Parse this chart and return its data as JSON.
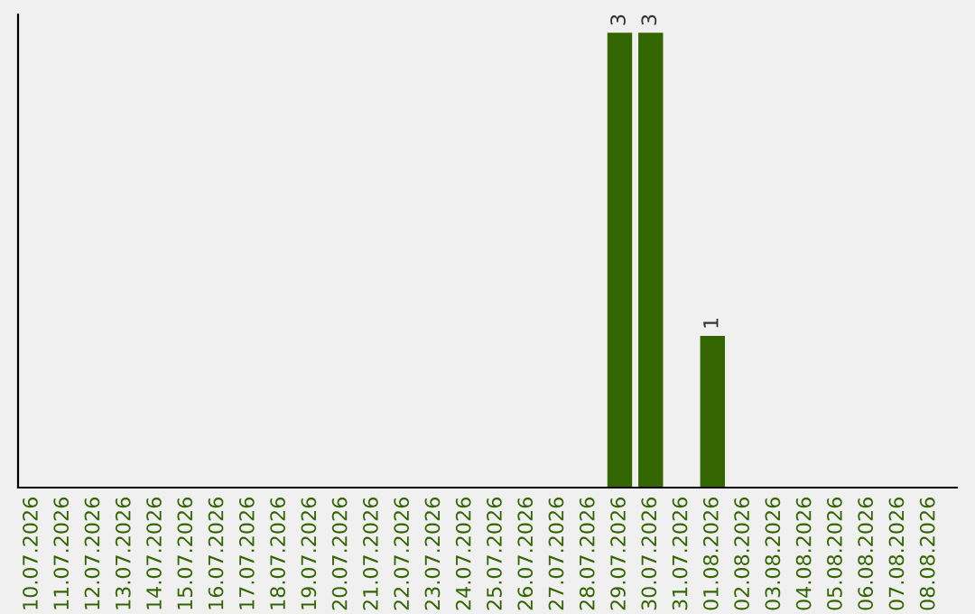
{
  "chart_data": {
    "type": "bar",
    "categories": [
      "10.07.2026",
      "11.07.2026",
      "12.07.2026",
      "13.07.2026",
      "14.07.2026",
      "15.07.2026",
      "16.07.2026",
      "17.07.2026",
      "18.07.2026",
      "19.07.2026",
      "20.07.2026",
      "21.07.2026",
      "22.07.2026",
      "23.07.2026",
      "24.07.2026",
      "25.07.2026",
      "26.07.2026",
      "27.07.2026",
      "28.07.2026",
      "29.07.2026",
      "30.07.2026",
      "31.07.2026",
      "01.08.2026",
      "02.08.2026",
      "03.08.2026",
      "04.08.2026",
      "05.08.2026",
      "06.08.2026",
      "07.08.2026",
      "08.08.2026"
    ],
    "values": [
      null,
      null,
      null,
      null,
      null,
      null,
      null,
      null,
      null,
      null,
      null,
      null,
      null,
      null,
      null,
      null,
      null,
      null,
      null,
      3,
      3,
      null,
      1,
      null,
      null,
      null,
      null,
      null,
      null,
      null
    ],
    "value_labels": [
      null,
      null,
      null,
      null,
      null,
      null,
      null,
      null,
      null,
      null,
      null,
      null,
      null,
      null,
      null,
      null,
      null,
      null,
      null,
      "3",
      "3",
      null,
      "1",
      null,
      null,
      null,
      null,
      null,
      null,
      null
    ],
    "color": "#336600",
    "relative": false,
    "tick_labels": "x",
    "grid": false
  }
}
